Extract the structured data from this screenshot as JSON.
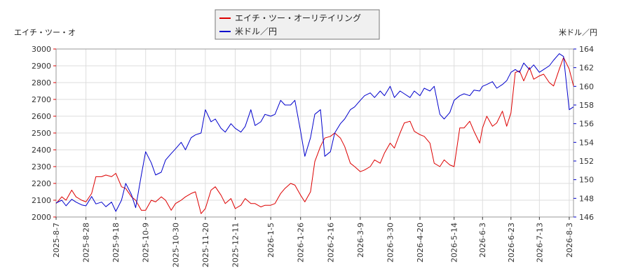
{
  "chart_data": {
    "type": "line",
    "legend": {
      "placement": "top-center",
      "entries": [
        {
          "label": "エイチ・ツー・オーリテイリング",
          "color": "#dd0000"
        },
        {
          "label": "米ドル／円",
          "color": "#0000cc"
        }
      ]
    },
    "left_axis": {
      "title": "エイチ・ツー・オ",
      "range": [
        2000,
        3000
      ],
      "ticks": [
        2000,
        2100,
        2200,
        2300,
        2400,
        2500,
        2600,
        2700,
        2800,
        2900,
        3000
      ],
      "tick_labels": [
        "2000",
        "2100",
        "2200",
        "2300",
        "2400",
        "2500",
        "2600",
        "2700",
        "2800",
        "2900",
        "3000"
      ],
      "tick_color": "#dd0000"
    },
    "right_axis": {
      "title": "米ドル／円",
      "range": [
        146,
        164
      ],
      "ticks": [
        146,
        148,
        150,
        152,
        154,
        156,
        158,
        160,
        162,
        164
      ],
      "tick_labels": [
        "146",
        "148",
        "150",
        "152",
        "154",
        "156",
        "158",
        "160",
        "162",
        "164"
      ],
      "tick_color": "#0000cc"
    },
    "x_axis": {
      "range": [
        "2025-08-07",
        "2026-08-06"
      ],
      "ticks": [
        "2025-8-7",
        "2025-8-28",
        "2025-9-18",
        "2025-10-9",
        "2025-10-30",
        "2025-11-20",
        "2025-12-11",
        "2026-1-5",
        "2026-1-26",
        "2026-2-16",
        "2026-3-9",
        "2026-3-30",
        "2026-4-20",
        "2026-5-14",
        "2026-6-3",
        "2026-6-23",
        "2026-7-13",
        "2026-8-3"
      ],
      "tick_dates": [
        "2025-08-07",
        "2025-08-28",
        "2025-09-18",
        "2025-10-09",
        "2025-10-30",
        "2025-11-20",
        "2025-12-11",
        "2026-01-05",
        "2026-01-26",
        "2026-02-16",
        "2026-03-09",
        "2026-03-30",
        "2026-04-20",
        "2026-05-14",
        "2026-06-03",
        "2026-06-23",
        "2026-07-13",
        "2026-08-03"
      ]
    },
    "grid": true,
    "series": [
      {
        "name": "エイチ・ツー・オーリテイリング",
        "axis": "left",
        "color": "#dd0000",
        "points": [
          [
            "2025-08-07",
            2080
          ],
          [
            "2025-08-11",
            2120
          ],
          [
            "2025-08-14",
            2100
          ],
          [
            "2025-08-18",
            2160
          ],
          [
            "2025-08-21",
            2120
          ],
          [
            "2025-08-25",
            2100
          ],
          [
            "2025-08-28",
            2090
          ],
          [
            "2025-09-01",
            2140
          ],
          [
            "2025-09-04",
            2240
          ],
          [
            "2025-09-08",
            2240
          ],
          [
            "2025-09-11",
            2250
          ],
          [
            "2025-09-15",
            2240
          ],
          [
            "2025-09-18",
            2260
          ],
          [
            "2025-09-22",
            2180
          ],
          [
            "2025-09-25",
            2170
          ],
          [
            "2025-09-29",
            2120
          ],
          [
            "2025-10-02",
            2100
          ],
          [
            "2025-10-06",
            2040
          ],
          [
            "2025-10-09",
            2040
          ],
          [
            "2025-10-13",
            2100
          ],
          [
            "2025-10-16",
            2090
          ],
          [
            "2025-10-20",
            2120
          ],
          [
            "2025-10-23",
            2100
          ],
          [
            "2025-10-27",
            2040
          ],
          [
            "2025-10-30",
            2080
          ],
          [
            "2025-11-03",
            2100
          ],
          [
            "2025-11-06",
            2120
          ],
          [
            "2025-11-10",
            2140
          ],
          [
            "2025-11-13",
            2150
          ],
          [
            "2025-11-17",
            2020
          ],
          [
            "2025-11-20",
            2050
          ],
          [
            "2025-11-24",
            2160
          ],
          [
            "2025-11-27",
            2180
          ],
          [
            "2025-12-01",
            2130
          ],
          [
            "2025-12-04",
            2080
          ],
          [
            "2025-12-08",
            2110
          ],
          [
            "2025-12-11",
            2050
          ],
          [
            "2025-12-15",
            2070
          ],
          [
            "2025-12-18",
            2110
          ],
          [
            "2025-12-22",
            2080
          ],
          [
            "2025-12-25",
            2080
          ],
          [
            "2025-12-29",
            2060
          ],
          [
            "2026-01-01",
            2070
          ],
          [
            "2026-01-05",
            2070
          ],
          [
            "2026-01-08",
            2080
          ],
          [
            "2026-01-12",
            2140
          ],
          [
            "2026-01-15",
            2170
          ],
          [
            "2026-01-19",
            2200
          ],
          [
            "2026-01-22",
            2190
          ],
          [
            "2026-01-26",
            2130
          ],
          [
            "2026-01-29",
            2090
          ],
          [
            "2026-02-02",
            2150
          ],
          [
            "2026-02-05",
            2330
          ],
          [
            "2026-02-09",
            2420
          ],
          [
            "2026-02-12",
            2470
          ],
          [
            "2026-02-16",
            2480
          ],
          [
            "2026-02-19",
            2500
          ],
          [
            "2026-02-23",
            2470
          ],
          [
            "2026-02-26",
            2420
          ],
          [
            "2026-03-02",
            2320
          ],
          [
            "2026-03-05",
            2300
          ],
          [
            "2026-03-09",
            2270
          ],
          [
            "2026-03-12",
            2280
          ],
          [
            "2026-03-16",
            2300
          ],
          [
            "2026-03-19",
            2340
          ],
          [
            "2026-03-23",
            2320
          ],
          [
            "2026-03-26",
            2380
          ],
          [
            "2026-03-30",
            2440
          ],
          [
            "2026-04-02",
            2410
          ],
          [
            "2026-04-06",
            2500
          ],
          [
            "2026-04-09",
            2560
          ],
          [
            "2026-04-13",
            2570
          ],
          [
            "2026-04-16",
            2510
          ],
          [
            "2026-04-20",
            2490
          ],
          [
            "2026-04-23",
            2480
          ],
          [
            "2026-04-27",
            2440
          ],
          [
            "2026-04-30",
            2320
          ],
          [
            "2026-05-04",
            2300
          ],
          [
            "2026-05-07",
            2340
          ],
          [
            "2026-05-11",
            2310
          ],
          [
            "2026-05-14",
            2300
          ],
          [
            "2026-05-18",
            2530
          ],
          [
            "2026-05-21",
            2530
          ],
          [
            "2026-05-25",
            2570
          ],
          [
            "2026-05-28",
            2510
          ],
          [
            "2026-06-01",
            2440
          ],
          [
            "2026-06-03",
            2530
          ],
          [
            "2026-06-06",
            2600
          ],
          [
            "2026-06-10",
            2540
          ],
          [
            "2026-06-13",
            2560
          ],
          [
            "2026-06-17",
            2630
          ],
          [
            "2026-06-20",
            2540
          ],
          [
            "2026-06-23",
            2620
          ],
          [
            "2026-06-26",
            2860
          ],
          [
            "2026-06-29",
            2870
          ],
          [
            "2026-07-02",
            2810
          ],
          [
            "2026-07-06",
            2890
          ],
          [
            "2026-07-09",
            2820
          ],
          [
            "2026-07-13",
            2840
          ],
          [
            "2026-07-16",
            2850
          ],
          [
            "2026-07-20",
            2800
          ],
          [
            "2026-07-23",
            2780
          ],
          [
            "2026-07-27",
            2880
          ],
          [
            "2026-07-30",
            2950
          ],
          [
            "2026-08-03",
            2880
          ],
          [
            "2026-08-06",
            2780
          ]
        ]
      },
      {
        "name": "米ドル／円",
        "axis": "right",
        "color": "#0000cc",
        "points": [
          [
            "2025-08-07",
            147.5
          ],
          [
            "2025-08-11",
            147.8
          ],
          [
            "2025-08-14",
            147.2
          ],
          [
            "2025-08-18",
            147.9
          ],
          [
            "2025-08-21",
            147.6
          ],
          [
            "2025-08-25",
            147.3
          ],
          [
            "2025-08-28",
            147.2
          ],
          [
            "2025-09-01",
            148.2
          ],
          [
            "2025-09-04",
            147.4
          ],
          [
            "2025-09-08",
            147.6
          ],
          [
            "2025-09-11",
            147.1
          ],
          [
            "2025-09-15",
            147.6
          ],
          [
            "2025-09-18",
            146.6
          ],
          [
            "2025-09-22",
            147.8
          ],
          [
            "2025-09-25",
            149.6
          ],
          [
            "2025-09-29",
            148.4
          ],
          [
            "2025-10-02",
            147.0
          ],
          [
            "2025-10-06",
            150.5
          ],
          [
            "2025-10-09",
            153.0
          ],
          [
            "2025-10-13",
            151.8
          ],
          [
            "2025-10-16",
            150.5
          ],
          [
            "2025-10-20",
            150.8
          ],
          [
            "2025-10-23",
            152.1
          ],
          [
            "2025-10-27",
            152.8
          ],
          [
            "2025-10-30",
            153.3
          ],
          [
            "2025-11-03",
            154.0
          ],
          [
            "2025-11-06",
            153.2
          ],
          [
            "2025-11-10",
            154.5
          ],
          [
            "2025-11-13",
            154.8
          ],
          [
            "2025-11-17",
            155.0
          ],
          [
            "2025-11-20",
            157.5
          ],
          [
            "2025-11-24",
            156.2
          ],
          [
            "2025-11-27",
            156.5
          ],
          [
            "2025-12-01",
            155.5
          ],
          [
            "2025-12-04",
            155.1
          ],
          [
            "2025-12-08",
            156.0
          ],
          [
            "2025-12-11",
            155.5
          ],
          [
            "2025-12-15",
            155.1
          ],
          [
            "2025-12-18",
            155.7
          ],
          [
            "2025-12-22",
            157.5
          ],
          [
            "2025-12-25",
            155.8
          ],
          [
            "2025-12-29",
            156.2
          ],
          [
            "2026-01-01",
            157.0
          ],
          [
            "2026-01-05",
            156.8
          ],
          [
            "2026-01-08",
            157.0
          ],
          [
            "2026-01-12",
            158.5
          ],
          [
            "2026-01-15",
            158.0
          ],
          [
            "2026-01-19",
            158.0
          ],
          [
            "2026-01-22",
            158.5
          ],
          [
            "2026-01-26",
            155.2
          ],
          [
            "2026-01-29",
            152.5
          ],
          [
            "2026-02-02",
            154.5
          ],
          [
            "2026-02-05",
            157.0
          ],
          [
            "2026-02-09",
            157.5
          ],
          [
            "2026-02-12",
            152.5
          ],
          [
            "2026-02-16",
            153.0
          ],
          [
            "2026-02-19",
            155.0
          ],
          [
            "2026-02-23",
            156.0
          ],
          [
            "2026-02-26",
            156.5
          ],
          [
            "2026-03-02",
            157.5
          ],
          [
            "2026-03-05",
            157.8
          ],
          [
            "2026-03-09",
            158.5
          ],
          [
            "2026-03-12",
            159.0
          ],
          [
            "2026-03-16",
            159.3
          ],
          [
            "2026-03-19",
            158.8
          ],
          [
            "2026-03-23",
            159.5
          ],
          [
            "2026-03-26",
            159.0
          ],
          [
            "2026-03-30",
            160.0
          ],
          [
            "2026-04-02",
            158.8
          ],
          [
            "2026-04-06",
            159.5
          ],
          [
            "2026-04-09",
            159.2
          ],
          [
            "2026-04-13",
            158.8
          ],
          [
            "2026-04-16",
            159.5
          ],
          [
            "2026-04-20",
            159.0
          ],
          [
            "2026-04-23",
            159.8
          ],
          [
            "2026-04-27",
            159.5
          ],
          [
            "2026-04-30",
            160.0
          ],
          [
            "2026-05-04",
            157.0
          ],
          [
            "2026-05-07",
            156.5
          ],
          [
            "2026-05-11",
            157.2
          ],
          [
            "2026-05-14",
            158.5
          ],
          [
            "2026-05-18",
            159.0
          ],
          [
            "2026-05-21",
            159.2
          ],
          [
            "2026-05-25",
            159.0
          ],
          [
            "2026-05-28",
            159.6
          ],
          [
            "2026-06-01",
            159.5
          ],
          [
            "2026-06-03",
            160.0
          ],
          [
            "2026-06-06",
            160.2
          ],
          [
            "2026-06-10",
            160.5
          ],
          [
            "2026-06-13",
            159.8
          ],
          [
            "2026-06-17",
            160.2
          ],
          [
            "2026-06-20",
            160.6
          ],
          [
            "2026-06-23",
            161.5
          ],
          [
            "2026-06-26",
            161.8
          ],
          [
            "2026-06-29",
            161.5
          ],
          [
            "2026-07-02",
            162.5
          ],
          [
            "2026-07-06",
            161.8
          ],
          [
            "2026-07-09",
            162.3
          ],
          [
            "2026-07-13",
            161.5
          ],
          [
            "2026-07-16",
            161.8
          ],
          [
            "2026-07-20",
            162.2
          ],
          [
            "2026-07-23",
            162.8
          ],
          [
            "2026-07-27",
            163.5
          ],
          [
            "2026-07-30",
            163.2
          ],
          [
            "2026-08-03",
            157.5
          ],
          [
            "2026-08-06",
            157.8
          ]
        ]
      }
    ]
  }
}
